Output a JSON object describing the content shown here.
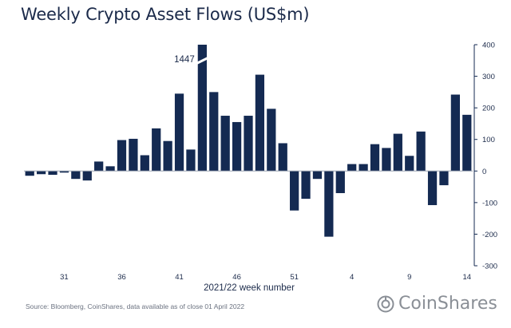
{
  "title": "Weekly Crypto Asset Flows (US$m)",
  "source": "Source: Bloomberg, CoinShares, data available as of close 01 April 2022",
  "brand": {
    "name": "CoinShares",
    "icon": "coinshares-logo-icon"
  },
  "colors": {
    "bar": "#142a52",
    "axis": "#142a52",
    "text": "#1b2a4a"
  },
  "chart_data": {
    "type": "bar",
    "title": "Weekly Crypto Asset Flows (US$m)",
    "xlabel": "2021/22 week number",
    "ylabel": "",
    "ylim": [
      -300,
      400
    ],
    "y_ticks": [
      400,
      300,
      200,
      100,
      0,
      -100,
      -200,
      -300
    ],
    "y_axis_side": "right",
    "grid": false,
    "x_tick_labels": [
      {
        "index": 3,
        "label": "31"
      },
      {
        "index": 8,
        "label": "36"
      },
      {
        "index": 13,
        "label": "41"
      },
      {
        "index": 18,
        "label": "46"
      },
      {
        "index": 23,
        "label": "51"
      },
      {
        "index": 28,
        "label": "4"
      },
      {
        "index": 33,
        "label": "9"
      },
      {
        "index": 38,
        "label": "14"
      }
    ],
    "values": [
      -15,
      -10,
      -12,
      -5,
      -25,
      -30,
      30,
      15,
      98,
      102,
      50,
      135,
      95,
      245,
      68,
      1447,
      250,
      175,
      155,
      175,
      305,
      197,
      88,
      -125,
      -88,
      -25,
      -208,
      -70,
      22,
      22,
      85,
      73,
      118,
      48,
      125,
      -108,
      -45,
      242,
      178
    ],
    "annotations": [
      {
        "index": 15,
        "label": "1447",
        "note": "bar truncated at axis maximum"
      }
    ]
  }
}
